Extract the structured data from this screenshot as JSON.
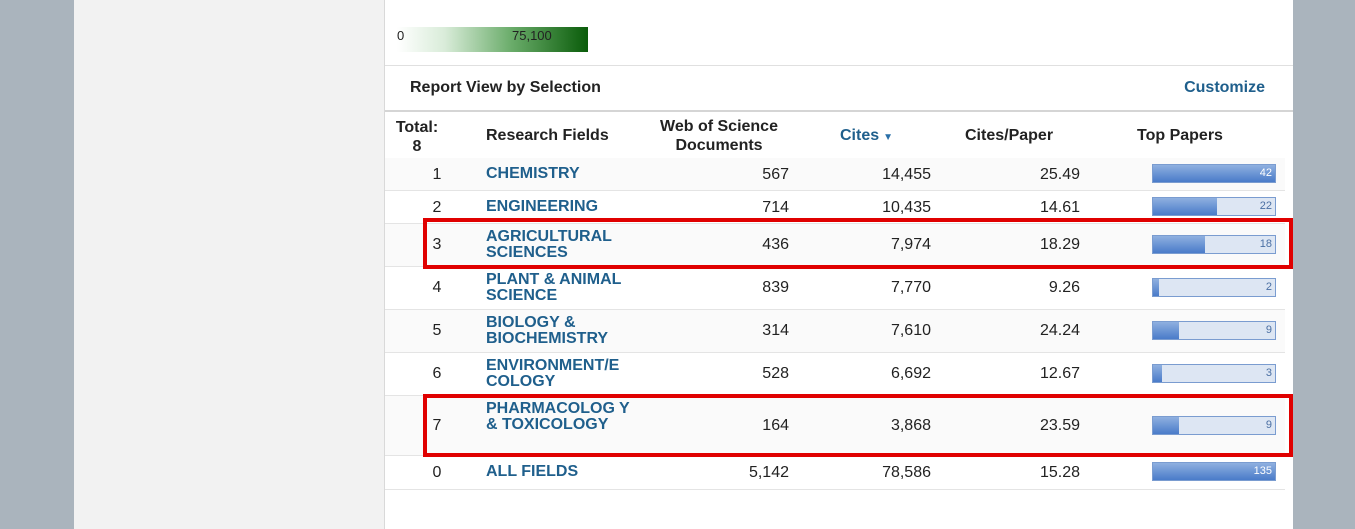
{
  "legend": {
    "min_label": "0",
    "max_label": "75,100"
  },
  "report": {
    "title": "Report View by Selection",
    "customize_label": "Customize"
  },
  "columns": {
    "total": "Total:",
    "total_count": "8",
    "field": "Research Fields",
    "wos_line1": "Web of Science",
    "wos_line2": "Documents",
    "cites": "Cites",
    "cites_sort_icon": "sort-down-icon",
    "cites_per_paper": "Cites/Paper",
    "top_papers": "Top Papers"
  },
  "rows": [
    {
      "rank": "1",
      "field": "CHEMISTRY",
      "wos": "567",
      "cites": "14,455",
      "cpp": "25.49",
      "top": "42",
      "top_fraction": 1.0
    },
    {
      "rank": "2",
      "field": "ENGINEERING",
      "wos": "714",
      "cites": "10,435",
      "cpp": "14.61",
      "top": "22",
      "top_fraction": 0.524
    },
    {
      "rank": "3",
      "field": "AGRICULTURAL SCIENCES",
      "wos": "436",
      "cites": "7,974",
      "cpp": "18.29",
      "top": "18",
      "top_fraction": 0.429
    },
    {
      "rank": "4",
      "field": "PLANT & ANIMAL SCIENCE",
      "wos": "839",
      "cites": "7,770",
      "cpp": "9.26",
      "top": "2",
      "top_fraction": 0.048
    },
    {
      "rank": "5",
      "field": "BIOLOGY & BIOCHEMISTRY",
      "wos": "314",
      "cites": "7,610",
      "cpp": "24.24",
      "top": "9",
      "top_fraction": 0.214
    },
    {
      "rank": "6",
      "field": "ENVIRONMENT/E COLOGY",
      "wos": "528",
      "cites": "6,692",
      "cpp": "12.67",
      "top": "3",
      "top_fraction": 0.071
    },
    {
      "rank": "7",
      "field": "PHARMACOLOG Y & TOXICOLOGY",
      "wos": "164",
      "cites": "3,868",
      "cpp": "23.59",
      "top": "9",
      "top_fraction": 0.214
    },
    {
      "rank": "0",
      "field": "ALL FIELDS",
      "wos": "5,142",
      "cites": "78,586",
      "cpp": "15.28",
      "top": "135",
      "top_fraction": 1.0
    }
  ],
  "colors": {
    "link": "#1f5f8c",
    "highlight": "#e00000",
    "bar": "#4a7bc9"
  }
}
